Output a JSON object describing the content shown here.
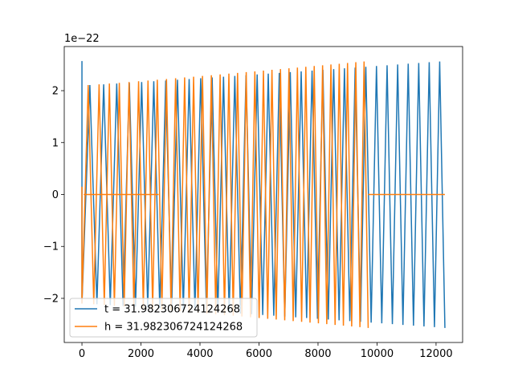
{
  "chart_data": {
    "type": "line",
    "title": "",
    "xlabel": "",
    "ylabel": "",
    "y_scale_label": "1e−22",
    "xlim": [
      -600,
      12900
    ],
    "ylim": [
      -2.85,
      2.85
    ],
    "x_ticks": [
      0,
      2000,
      4000,
      6000,
      8000,
      10000,
      12000
    ],
    "x_tick_labels": [
      "0",
      "2000",
      "4000",
      "6000",
      "8000",
      "10000",
      "12000"
    ],
    "y_ticks": [
      -2,
      -1,
      0,
      1,
      2
    ],
    "y_tick_labels": [
      "−2",
      "−1",
      "0",
      "1",
      "2"
    ],
    "grid": false,
    "legend_position": "lower-left",
    "series": [
      {
        "name": "t = 31.982306724124268",
        "color": "#1f77b4",
        "pattern": "chirp",
        "x_start": 0,
        "x_end": 12300,
        "cycles": 64,
        "amplitude_start": 2.1,
        "amplitude_end": 2.57,
        "initial_spike": 2.57,
        "flat_segments": []
      },
      {
        "name": "h = 31.982306724124268",
        "color": "#ff7f0e",
        "pattern": "chirp",
        "x_start": 0,
        "x_end": 9700,
        "cycles": 64,
        "amplitude_start": 2.1,
        "amplitude_end": 2.57,
        "initial_spike": 0.15,
        "flat_segments": [
          {
            "x": [
              60,
              2600
            ],
            "y": 0.0
          },
          {
            "x": [
              9700,
              12300
            ],
            "y": 0.0
          }
        ]
      }
    ]
  }
}
